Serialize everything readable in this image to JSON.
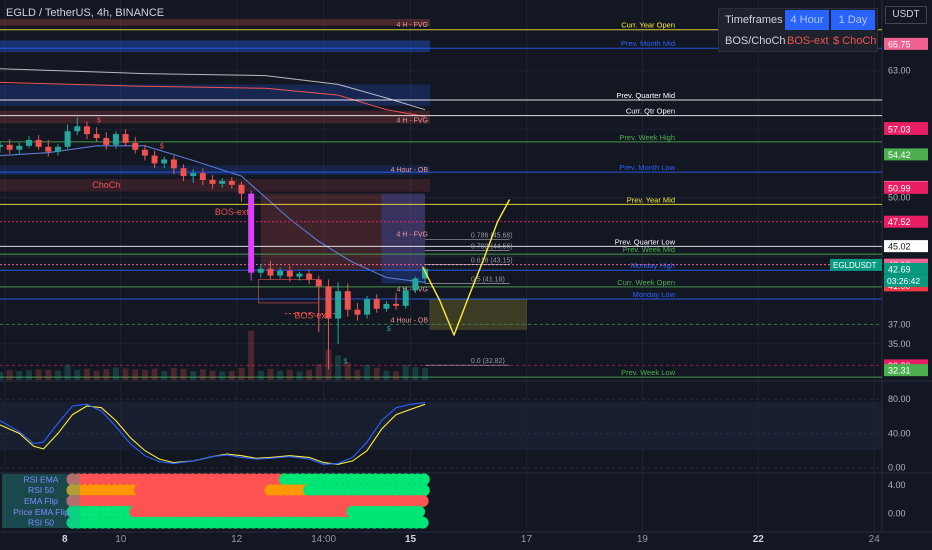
{
  "header": {
    "symbol_title": "EGLD / TetherUS, 4h, BINANCE",
    "currency_button": "USDT"
  },
  "timeframe_panel": {
    "row1_label": "Timeframes",
    "row1_values": [
      "4 Hour",
      "1 Day"
    ],
    "row2_label": "BOS/ChoCh",
    "row2_values": [
      "BOS-ext",
      "$ ChoCh"
    ]
  },
  "colors": {
    "background": "#131722",
    "bull": "#26a69a",
    "bear": "#ef5350",
    "magenta": "#e040fb",
    "blue": "#2962ff",
    "yellow": "#ffeb3b",
    "green_line": "#4caf50",
    "white_line": "#ffffff",
    "fvg_fill": "#ef5350",
    "ob_fill": "#2962ff"
  },
  "chart_data": [
    {
      "type": "line",
      "title": "EGLD / TetherUS, 4h, BINANCE",
      "ylim": [
        31.3,
        68.4
      ],
      "y_ticks": [
        63.0,
        50.0,
        37.0,
        35.0
      ],
      "x_ticks": [
        "8",
        "10",
        "12",
        "14:00",
        "15",
        "17",
        "19",
        "22",
        "24"
      ],
      "x_tick_times": [
        2,
        50,
        98,
        134,
        170,
        218,
        266,
        314,
        362
      ],
      "last_price": 42.69,
      "last_price_symbol": "EGLDUSDT",
      "countdown": "03:26:42",
      "price_tags": [
        {
          "value": 65.75,
          "text": "65.75",
          "color": "#f06292"
        },
        {
          "value": 57.12,
          "text": "57.12",
          "color": "#e91e63"
        },
        {
          "value": 57.03,
          "text": "57.03",
          "color": "#e91e63"
        },
        {
          "value": 54.42,
          "text": "54.42",
          "color": "#4caf50"
        },
        {
          "value": 51.09,
          "text": "51.09",
          "color": "#f06292"
        },
        {
          "value": 50.99,
          "text": "50.99",
          "color": "#e91e63"
        },
        {
          "value": 47.52,
          "text": "47.52",
          "color": "#e91e63"
        },
        {
          "value": 45.02,
          "text": "45.02",
          "color": "#ffffff"
        },
        {
          "value": 43.12,
          "text": "43.12",
          "color": "#f06292"
        },
        {
          "value": 42.69,
          "text": "42.69",
          "color": "#089981"
        },
        {
          "value": 41.0,
          "text": "41.00",
          "color": "#f23645"
        },
        {
          "value": 32.8,
          "text": "32.80",
          "color": "#e91e63"
        },
        {
          "value": 32.31,
          "text": "32.31",
          "color": "#4caf50"
        }
      ],
      "levels": [
        {
          "label": "Curr. Year Open",
          "value": 67.2,
          "color": "#ffeb3b"
        },
        {
          "label": "Prev. Month Mid",
          "value": 65.3,
          "color": "#2962ff"
        },
        {
          "label": "Prev. Quarter Mid",
          "value": 60.0,
          "color": "#ffffff"
        },
        {
          "label": "Curr. Qtr Open",
          "value": 58.4,
          "color": "#ffffff"
        },
        {
          "label": "Prev. Week High",
          "value": 55.7,
          "color": "#4caf50"
        },
        {
          "label": "Prev. Month Low",
          "value": 52.6,
          "color": "#2962ff"
        },
        {
          "label": "Prev. Year Mid",
          "value": 49.3,
          "color": "#ffeb3b"
        },
        {
          "label": "Prev. Quarter Low",
          "value": 45.0,
          "color": "#ffffff"
        },
        {
          "label": "Prev. Week Mid",
          "value": 44.2,
          "color": "#4caf50"
        },
        {
          "label": "Monday High",
          "value": 42.55,
          "color": "#2962ff"
        },
        {
          "label": "Curr. Week Open",
          "value": 40.85,
          "color": "#4caf50"
        },
        {
          "label": "Monday Low",
          "value": 39.6,
          "color": "#2962ff"
        },
        {
          "label": "Prev. Week Low",
          "value": 31.6,
          "color": "#4caf50"
        }
      ],
      "zone_labels": [
        {
          "text": "4 H - FVG",
          "value": 67.8
        },
        {
          "text": "4 H - FVG",
          "value": 58.0
        },
        {
          "text": "4 Hour - OB",
          "value": 52.9
        },
        {
          "text": "4 H - FVG",
          "value": 46.3
        },
        {
          "text": "4 H - FVG",
          "value": 40.7
        },
        {
          "text": "4 Hour - OB",
          "value": 37.5
        }
      ],
      "fib_labels": [
        {
          "text": "0.786 (45.68)",
          "value": 45.68
        },
        {
          "text": "0.702 (44.56)",
          "value": 44.56
        },
        {
          "text": "0.618 (43.15)",
          "value": 43.15
        },
        {
          "text": "0.5 (41.18)",
          "value": 41.18
        },
        {
          "text": "0.0 (32.82)",
          "value": 32.82
        }
      ],
      "structure_labels": [
        {
          "text": "BOS-ext",
          "value": 48.2
        },
        {
          "text": "BOS-ext",
          "value": 37.6
        },
        {
          "text": "ChoCh",
          "value": 51.0
        },
        {
          "text": "$",
          "value": 57.7
        },
        {
          "text": "$",
          "value": 55.0
        },
        {
          "text": "$",
          "value": 36.3
        },
        {
          "text": "$",
          "value": 33.0
        }
      ],
      "candles": [
        {
          "t": 0,
          "o": 55.2,
          "h": 55.8,
          "c": 55.4,
          "l": 54.6
        },
        {
          "t": 4,
          "o": 55.4,
          "h": 56.0,
          "c": 54.9,
          "l": 54.5
        },
        {
          "t": 8,
          "o": 54.9,
          "h": 55.6,
          "c": 55.3,
          "l": 54.4
        },
        {
          "t": 12,
          "o": 55.3,
          "h": 56.3,
          "c": 55.9,
          "l": 55.1
        },
        {
          "t": 16,
          "o": 55.9,
          "h": 56.4,
          "c": 55.2,
          "l": 54.9
        },
        {
          "t": 20,
          "o": 55.2,
          "h": 55.9,
          "c": 54.7,
          "l": 54.2
        },
        {
          "t": 24,
          "o": 54.7,
          "h": 55.5,
          "c": 55.2,
          "l": 54.3
        },
        {
          "t": 28,
          "o": 55.2,
          "h": 57.5,
          "c": 56.8,
          "l": 55.0
        },
        {
          "t": 32,
          "o": 56.8,
          "h": 58.2,
          "c": 57.3,
          "l": 56.4
        },
        {
          "t": 36,
          "o": 57.3,
          "h": 57.8,
          "c": 56.5,
          "l": 56.0
        },
        {
          "t": 40,
          "o": 56.5,
          "h": 57.2,
          "c": 56.1,
          "l": 55.7
        },
        {
          "t": 44,
          "o": 56.1,
          "h": 56.7,
          "c": 55.4,
          "l": 54.9
        },
        {
          "t": 48,
          "o": 55.4,
          "h": 56.8,
          "c": 56.5,
          "l": 55.0
        },
        {
          "t": 52,
          "o": 56.5,
          "h": 57.0,
          "c": 55.6,
          "l": 55.3
        },
        {
          "t": 56,
          "o": 55.6,
          "h": 56.2,
          "c": 54.9,
          "l": 54.5
        },
        {
          "t": 60,
          "o": 54.9,
          "h": 55.4,
          "c": 54.3,
          "l": 53.8
        },
        {
          "t": 64,
          "o": 54.3,
          "h": 54.8,
          "c": 53.5,
          "l": 53.0
        },
        {
          "t": 68,
          "o": 53.5,
          "h": 54.2,
          "c": 53.9,
          "l": 53.0
        },
        {
          "t": 72,
          "o": 53.9,
          "h": 54.3,
          "c": 53.0,
          "l": 52.4
        },
        {
          "t": 76,
          "o": 53.0,
          "h": 53.4,
          "c": 52.2,
          "l": 51.7
        },
        {
          "t": 80,
          "o": 52.2,
          "h": 52.9,
          "c": 52.5,
          "l": 51.5
        },
        {
          "t": 84,
          "o": 52.5,
          "h": 53.0,
          "c": 51.8,
          "l": 51.3
        },
        {
          "t": 88,
          "o": 51.8,
          "h": 52.3,
          "c": 51.4,
          "l": 50.9
        },
        {
          "t": 92,
          "o": 51.4,
          "h": 52.0,
          "c": 51.7,
          "l": 51.0
        },
        {
          "t": 96,
          "o": 51.7,
          "h": 52.1,
          "c": 51.3,
          "l": 50.9
        },
        {
          "t": 100,
          "o": 51.3,
          "h": 51.6,
          "c": 50.4,
          "l": 49.6
        },
        {
          "t": 104,
          "o": 50.4,
          "h": 50.7,
          "c": 42.3,
          "l": 41.5
        },
        {
          "t": 108,
          "o": 42.3,
          "h": 43.2,
          "c": 42.7,
          "l": 41.8
        },
        {
          "t": 112,
          "o": 42.7,
          "h": 43.5,
          "c": 42.0,
          "l": 41.6
        },
        {
          "t": 116,
          "o": 42.0,
          "h": 42.8,
          "c": 42.5,
          "l": 41.7
        },
        {
          "t": 120,
          "o": 42.5,
          "h": 43.0,
          "c": 41.9,
          "l": 41.4
        },
        {
          "t": 124,
          "o": 41.9,
          "h": 42.4,
          "c": 42.2,
          "l": 41.5
        },
        {
          "t": 128,
          "o": 42.2,
          "h": 42.6,
          "c": 41.6,
          "l": 41.1
        },
        {
          "t": 132,
          "o": 41.6,
          "h": 42.0,
          "c": 40.9,
          "l": 36.2
        },
        {
          "t": 136,
          "o": 40.9,
          "h": 41.6,
          "c": 37.6,
          "l": 32.4
        },
        {
          "t": 140,
          "o": 37.6,
          "h": 41.3,
          "c": 40.4,
          "l": 35.0
        },
        {
          "t": 144,
          "o": 40.4,
          "h": 41.2,
          "c": 38.5,
          "l": 37.8
        },
        {
          "t": 148,
          "o": 38.5,
          "h": 39.2,
          "c": 38.0,
          "l": 37.4
        },
        {
          "t": 152,
          "o": 38.0,
          "h": 39.9,
          "c": 39.6,
          "l": 37.6
        },
        {
          "t": 156,
          "o": 39.6,
          "h": 40.1,
          "c": 38.6,
          "l": 38.2
        },
        {
          "t": 160,
          "o": 38.6,
          "h": 39.4,
          "c": 39.1,
          "l": 38.3
        },
        {
          "t": 164,
          "o": 39.1,
          "h": 40.2,
          "c": 38.9,
          "l": 38.5
        },
        {
          "t": 168,
          "o": 38.9,
          "h": 40.8,
          "c": 40.5,
          "l": 38.6
        },
        {
          "t": 172,
          "o": 40.5,
          "h": 41.9,
          "c": 41.7,
          "l": 40.2
        },
        {
          "t": 176,
          "o": 41.7,
          "h": 42.9,
          "c": 42.69,
          "l": 41.2
        }
      ],
      "projection_path": [
        {
          "t": 175,
          "v": 42.9
        },
        {
          "t": 182,
          "v": 39.5
        },
        {
          "t": 188,
          "v": 35.9
        },
        {
          "t": 194,
          "v": 39.8
        },
        {
          "t": 200,
          "v": 43.5
        },
        {
          "t": 206,
          "v": 47.5
        },
        {
          "t": 211,
          "v": 49.8
        }
      ]
    },
    {
      "type": "line",
      "title": "",
      "ylim": [
        -5,
        100
      ],
      "y_ticks": [
        80.0,
        40.0,
        0.0
      ],
      "y_tick_labels": [
        "80.00",
        "40.00",
        "0.00"
      ],
      "series": [
        {
          "color": "#ffeb3b",
          "values": [
            [
              0,
              50
            ],
            [
              8,
              40
            ],
            [
              14,
              25
            ],
            [
              18,
              22
            ],
            [
              24,
              40
            ],
            [
              30,
              62
            ],
            [
              36,
              72
            ],
            [
              42,
              70
            ],
            [
              48,
              55
            ],
            [
              54,
              35
            ],
            [
              60,
              20
            ],
            [
              66,
              10
            ],
            [
              72,
              6
            ],
            [
              80,
              8
            ],
            [
              88,
              13
            ],
            [
              94,
              16
            ],
            [
              100,
              14
            ],
            [
              106,
              11
            ],
            [
              112,
              12
            ],
            [
              120,
              14
            ],
            [
              128,
              12
            ],
            [
              134,
              6
            ],
            [
              140,
              4
            ],
            [
              146,
              8
            ],
            [
              152,
              20
            ],
            [
              158,
              45
            ],
            [
              164,
              62
            ],
            [
              170,
              68
            ],
            [
              176,
              74
            ]
          ]
        },
        {
          "color": "#2962ff",
          "values": [
            [
              0,
              55
            ],
            [
              8,
              42
            ],
            [
              14,
              28
            ],
            [
              18,
              30
            ],
            [
              24,
              52
            ],
            [
              30,
              72
            ],
            [
              36,
              74
            ],
            [
              42,
              66
            ],
            [
              48,
              48
            ],
            [
              54,
              28
            ],
            [
              60,
              14
            ],
            [
              66,
              7
            ],
            [
              72,
              5
            ],
            [
              80,
              8
            ],
            [
              88,
              13
            ],
            [
              94,
              15
            ],
            [
              100,
              12
            ],
            [
              106,
              10
            ],
            [
              112,
              11
            ],
            [
              120,
              13
            ],
            [
              128,
              10
            ],
            [
              134,
              4
            ],
            [
              140,
              5
            ],
            [
              146,
              12
            ],
            [
              152,
              30
            ],
            [
              158,
              55
            ],
            [
              164,
              70
            ],
            [
              170,
              74
            ],
            [
              176,
              76
            ]
          ]
        }
      ]
    },
    {
      "type": "heatmap",
      "title": "",
      "ylim": [
        -2,
        5.5
      ],
      "y_ticks": [
        4.0,
        0.0
      ],
      "y_tick_labels": [
        "4.00",
        "0.00"
      ],
      "row_labels": [
        "RSI EMA",
        "RSI 50",
        "EMA Flip",
        "Price EMA Flip",
        "RSI 50"
      ],
      "row_values": [
        5,
        4,
        3,
        2,
        1
      ],
      "segments": [
        {
          "row": 0,
          "t_from": 30,
          "t_to": 118,
          "color": "#ff5252"
        },
        {
          "row": 0,
          "t_from": 118,
          "t_to": 176,
          "color": "#00e676"
        },
        {
          "row": 1,
          "t_from": 30,
          "t_to": 58,
          "color": "#ff9800"
        },
        {
          "row": 1,
          "t_from": 58,
          "t_to": 112,
          "color": "#ff5252"
        },
        {
          "row": 1,
          "t_from": 112,
          "t_to": 128,
          "color": "#ff9800"
        },
        {
          "row": 1,
          "t_from": 128,
          "t_to": 176,
          "color": "#00e676"
        },
        {
          "row": 2,
          "t_from": 30,
          "t_to": 176,
          "color": "#ff5252"
        },
        {
          "row": 3,
          "t_from": 30,
          "t_to": 56,
          "color": "#00e676"
        },
        {
          "row": 3,
          "t_from": 56,
          "t_to": 146,
          "color": "#ff5252"
        },
        {
          "row": 3,
          "t_from": 146,
          "t_to": 176,
          "color": "#00e676"
        },
        {
          "row": 4,
          "t_from": 30,
          "t_to": 176,
          "color": "#00e676"
        }
      ]
    }
  ]
}
